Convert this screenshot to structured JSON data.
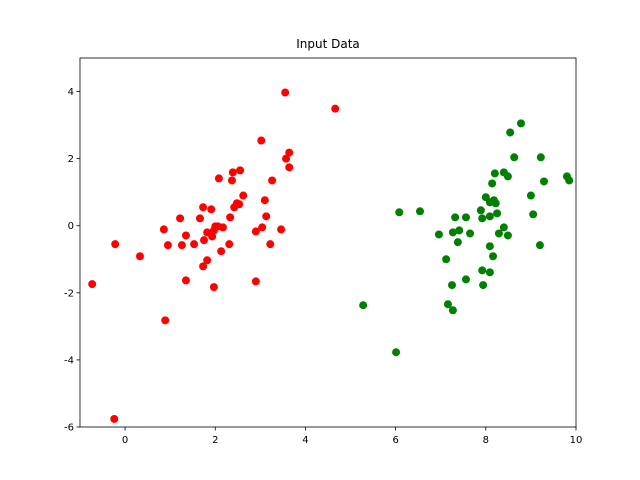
{
  "chart_data": {
    "type": "scatter",
    "title": "Input Data",
    "xlim": [
      -1,
      10
    ],
    "ylim": [
      -6,
      5
    ],
    "xticks": [
      0,
      2,
      4,
      6,
      8,
      10
    ],
    "yticks": [
      -6,
      -4,
      -2,
      0,
      2,
      4
    ],
    "series": [
      {
        "color": "red",
        "x": [
          -0.73,
          -0.22,
          0.33,
          -0.24,
          0.89,
          0.86,
          0.95,
          1.22,
          1.26,
          1.35,
          1.35,
          1.53,
          1.66,
          1.73,
          1.75,
          1.73,
          1.82,
          1.82,
          1.91,
          1.93,
          1.97,
          1.97,
          2.0,
          2.06,
          2.08,
          2.13,
          2.17,
          2.31,
          2.33,
          2.37,
          2.39,
          2.42,
          2.48,
          2.55,
          2.53,
          2.62,
          2.9,
          2.9,
          3.02,
          3.04,
          3.1,
          3.13,
          3.22,
          3.26,
          3.46,
          3.55,
          3.57,
          3.64,
          3.64,
          4.66
        ],
        "y": [
          -1.74,
          -0.55,
          -0.91,
          -5.76,
          -2.82,
          -0.11,
          -0.58,
          0.22,
          -0.58,
          -0.29,
          -1.63,
          -0.55,
          0.22,
          0.55,
          -0.43,
          -1.21,
          -0.2,
          -1.03,
          0.49,
          -0.32,
          -0.14,
          -1.83,
          -0.02,
          -0.02,
          1.41,
          -0.76,
          -0.05,
          -0.55,
          0.25,
          1.35,
          1.59,
          0.55,
          0.67,
          1.65,
          0.64,
          0.9,
          -0.17,
          -1.66,
          2.54,
          -0.05,
          0.76,
          0.28,
          -0.55,
          1.35,
          -0.11,
          3.97,
          2.0,
          2.18,
          1.74,
          3.49
        ]
      },
      {
        "color": "green",
        "x": [
          5.28,
          6.01,
          6.08,
          6.54,
          6.96,
          7.12,
          7.16,
          7.25,
          7.27,
          7.32,
          7.27,
          7.41,
          7.38,
          7.56,
          7.56,
          7.65,
          7.89,
          7.92,
          7.92,
          7.94,
          8.0,
          8.09,
          8.09,
          8.09,
          8.09,
          8.14,
          8.16,
          8.18,
          8.2,
          8.22,
          8.25,
          8.29,
          8.4,
          8.4,
          8.49,
          8.49,
          8.54,
          8.63,
          8.78,
          9.0,
          9.05,
          9.2,
          9.22,
          9.29,
          9.8,
          9.85
        ],
        "y": [
          -2.37,
          -3.77,
          0.4,
          0.43,
          -0.26,
          -1.0,
          -2.34,
          -1.77,
          -2.52,
          0.25,
          -0.2,
          -0.14,
          -0.49,
          -1.6,
          0.25,
          -0.23,
          0.46,
          -1.33,
          0.22,
          -1.77,
          0.85,
          -1.39,
          -0.61,
          0.28,
          0.7,
          1.26,
          -0.91,
          0.76,
          1.56,
          0.67,
          0.37,
          -0.23,
          -0.05,
          1.59,
          -0.29,
          1.47,
          2.78,
          2.04,
          3.05,
          0.9,
          0.34,
          -0.58,
          2.04,
          1.32,
          1.47,
          1.35
        ]
      }
    ]
  }
}
